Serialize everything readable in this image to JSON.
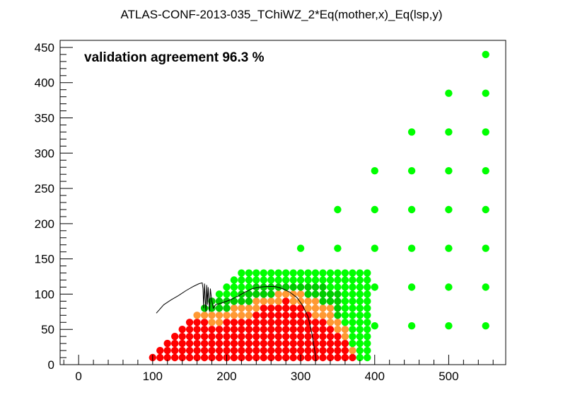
{
  "chart_data": {
    "type": "scatter",
    "title": "ATLAS-CONF-2013-035_TChiWZ_2*Eq(mother,x)_Eq(lsp,y)",
    "annotation": "validation agreement 96.3 %",
    "xlabel": "",
    "ylabel": "",
    "xlim": [
      -25,
      577
    ],
    "ylim": [
      0,
      460
    ],
    "x_ticks": [
      0,
      100,
      200,
      300,
      400,
      500
    ],
    "y_ticks": [
      0,
      50,
      100,
      150,
      200,
      250,
      300,
      350,
      400,
      450
    ],
    "grid": false,
    "colors": {
      "red": "#ff0000",
      "orange": "#ff9933",
      "darkgreen": "#00cc00",
      "green": "#00ff00",
      "contour": "#000000"
    },
    "sparse_points": [
      {
        "x": 300,
        "y": 165
      },
      {
        "x": 350,
        "y": 165
      },
      {
        "x": 350,
        "y": 220
      },
      {
        "x": 400,
        "y": 55
      },
      {
        "x": 400,
        "y": 110
      },
      {
        "x": 400,
        "y": 165
      },
      {
        "x": 400,
        "y": 220
      },
      {
        "x": 400,
        "y": 275
      },
      {
        "x": 450,
        "y": 55
      },
      {
        "x": 450,
        "y": 110
      },
      {
        "x": 450,
        "y": 165
      },
      {
        "x": 450,
        "y": 220
      },
      {
        "x": 450,
        "y": 275
      },
      {
        "x": 450,
        "y": 330
      },
      {
        "x": 500,
        "y": 55
      },
      {
        "x": 500,
        "y": 110
      },
      {
        "x": 500,
        "y": 165
      },
      {
        "x": 500,
        "y": 220
      },
      {
        "x": 500,
        "y": 275
      },
      {
        "x": 500,
        "y": 330
      },
      {
        "x": 500,
        "y": 385
      },
      {
        "x": 550,
        "y": 55
      },
      {
        "x": 550,
        "y": 110
      },
      {
        "x": 550,
        "y": 165
      },
      {
        "x": 550,
        "y": 220
      },
      {
        "x": 550,
        "y": 275
      },
      {
        "x": 550,
        "y": 330
      },
      {
        "x": 550,
        "y": 385
      },
      {
        "x": 550,
        "y": 440
      }
    ],
    "grid_columns": {
      "x_start": 100,
      "x_step": 10,
      "count": 30,
      "y_step": 10,
      "y_top": [
        10,
        20,
        30,
        40,
        50,
        60,
        70,
        80,
        90,
        100,
        110,
        120,
        130,
        135,
        135,
        135,
        135,
        135,
        135,
        135,
        135,
        135,
        135,
        135,
        135,
        135,
        135,
        135,
        135,
        135
      ],
      "red_top": [
        10,
        20,
        30,
        40,
        50,
        60,
        60,
        60,
        50,
        50,
        60,
        60,
        60,
        60,
        70,
        80,
        80,
        80,
        90,
        85,
        80,
        70,
        60,
        60,
        50,
        40,
        30,
        10,
        -1,
        -1
      ],
      "orange_top": [
        -1,
        -1,
        20,
        -1,
        -1,
        -1,
        70,
        70,
        70,
        70,
        70,
        80,
        80,
        80,
        90,
        90,
        95,
        100,
        100,
        100,
        100,
        95,
        90,
        80,
        80,
        60,
        50,
        20,
        -1,
        -1
      ],
      "darkgreen_top": [
        -1,
        -1,
        -1,
        -1,
        -1,
        -1,
        -1,
        80,
        90,
        90,
        90,
        90,
        100,
        100,
        110,
        110,
        110,
        110,
        110,
        110,
        110,
        110,
        110,
        110,
        100,
        100,
        -1,
        -1,
        -1,
        -1
      ]
    },
    "contour_line": [
      [
        105,
        73
      ],
      [
        115,
        85
      ],
      [
        125,
        92
      ],
      [
        135,
        98
      ],
      [
        145,
        105
      ],
      [
        155,
        111
      ],
      [
        163,
        115
      ],
      [
        167,
        116
      ],
      [
        168,
        108
      ],
      [
        169,
        80
      ],
      [
        170,
        115
      ],
      [
        171,
        95
      ],
      [
        172,
        75
      ],
      [
        173,
        113
      ],
      [
        174,
        85
      ],
      [
        175,
        110
      ],
      [
        177,
        75
      ],
      [
        178,
        108
      ],
      [
        180,
        90
      ],
      [
        182,
        80
      ],
      [
        185,
        85
      ],
      [
        195,
        88
      ],
      [
        205,
        92
      ],
      [
        215,
        97
      ],
      [
        225,
        103
      ],
      [
        235,
        108
      ],
      [
        245,
        110
      ],
      [
        255,
        111
      ],
      [
        265,
        111
      ],
      [
        275,
        108
      ],
      [
        285,
        103
      ],
      [
        295,
        95
      ],
      [
        302,
        85
      ],
      [
        310,
        68
      ],
      [
        315,
        45
      ],
      [
        319,
        20
      ],
      [
        321,
        5
      ]
    ]
  }
}
